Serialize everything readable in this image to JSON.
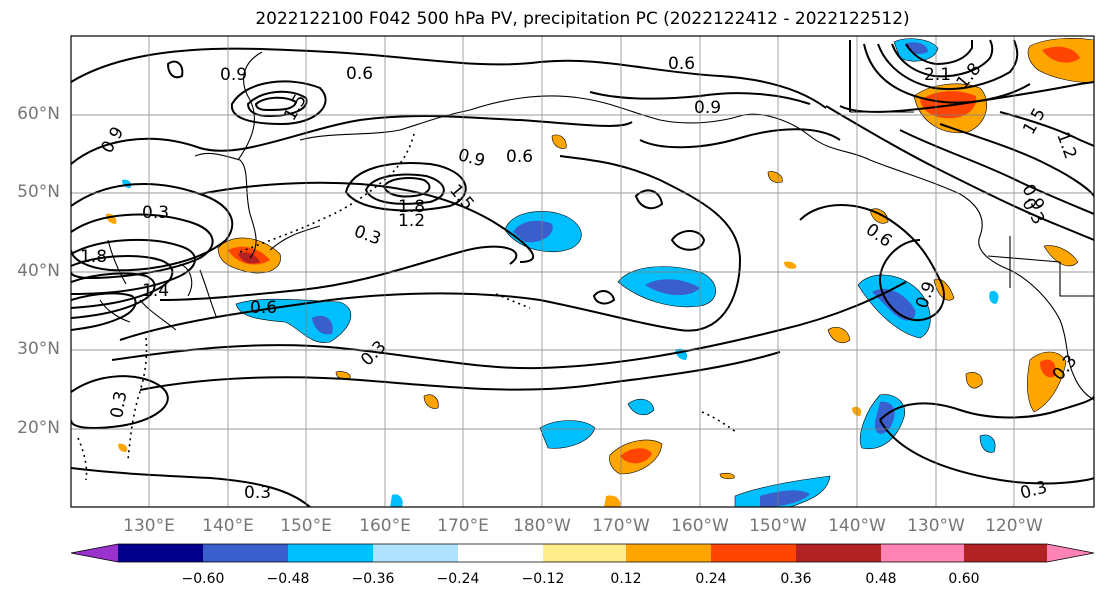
{
  "title": "2022122100 F042 500 hPa PV, precipitation PC (2022122412 - 2022122512)",
  "latitude_labels": [
    "60°N",
    "50°N",
    "40°N",
    "30°N",
    "20°N"
  ],
  "longitude_labels": [
    "130°E",
    "140°E",
    "150°E",
    "160°E",
    "170°E",
    "180°W",
    "170°W",
    "160°W",
    "150°W",
    "140°W",
    "130°W",
    "120°W"
  ],
  "colorbar": {
    "colors": [
      "#9a32cd",
      "#00008b",
      "#3a5fcd",
      "#00bfff",
      "#b0e2ff",
      "#ffffff",
      "#ffec8b",
      "#ffa500",
      "#ff4500",
      "#b22222",
      "#ff83b4"
    ],
    "tick_labels": [
      "−0.60",
      "−0.48",
      "−0.36",
      "−0.24",
      "−0.12",
      "0.12",
      "0.24",
      "0.36",
      "0.48",
      "0.60"
    ]
  },
  "contour_labels": [
    "0.9",
    "0.6",
    "0.6",
    "1.5",
    "0.9",
    "0.6",
    "0.9",
    "0.3",
    "1.8",
    "1.5",
    "1.2",
    "0.3",
    "0.9",
    "1.8",
    "1.4",
    "0.6",
    "0.3",
    "0.6",
    "0.9",
    "0.3",
    "0.3",
    "0.3",
    "0.3",
    "2.1",
    "1.8",
    "1.5",
    "1.2",
    "0.9",
    "0.3"
  ]
}
